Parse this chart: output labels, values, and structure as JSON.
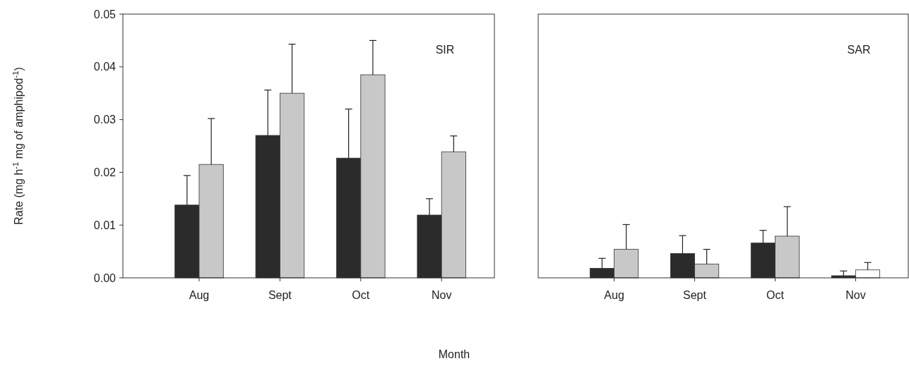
{
  "chart_data": [
    {
      "type": "bar",
      "title": "SIR",
      "ylabel": "Rate (mg h$^{-1}$ mg of amphipod$^{-1}$)",
      "xlabel": "Month",
      "categories": [
        "Aug",
        "Sept",
        "Oct",
        "Nov"
      ],
      "ylim": [
        0,
        0.05
      ],
      "yticks": [
        {
          "value": 0,
          "label": "0.00"
        },
        {
          "value": 0.01,
          "label": "0.01"
        },
        {
          "value": 0.02,
          "label": "0.02"
        },
        {
          "value": 0.03,
          "label": "0.03"
        },
        {
          "value": 0.04,
          "label": "0.04"
        },
        {
          "value": 0.05,
          "label": "0.05"
        }
      ],
      "grid": false,
      "series": [
        {
          "color": "#2b2b2b",
          "values": [
            0.0138,
            0.027,
            0.0227,
            0.0119
          ],
          "errors": [
            0.0056,
            0.0086,
            0.0093,
            0.0031
          ]
        },
        {
          "color": "#c8c8c8",
          "values": [
            0.0215,
            0.035,
            0.0385,
            0.0239
          ],
          "errors": [
            0.0087,
            0.0093,
            0.0065,
            0.003
          ]
        }
      ]
    },
    {
      "type": "bar",
      "title": "SAR",
      "categories": [
        "Aug",
        "Sept",
        "Oct",
        "Nov"
      ],
      "ylim": [
        0,
        0.05
      ],
      "tick_labels": "x",
      "grid": false,
      "series": [
        {
          "color": "#2b2b2b",
          "values": [
            0.0018,
            0.0046,
            0.0066,
            0.0004
          ],
          "errors": [
            0.0019,
            0.0034,
            0.0024,
            0.0009
          ]
        },
        {
          "colors": [
            "#c8c8c8",
            "#c8c8c8",
            "#c8c8c8",
            "#ffffff"
          ],
          "values": [
            0.0054,
            0.0026,
            0.0079,
            0.0015
          ],
          "errors": [
            0.0047,
            0.0028,
            0.0056,
            0.0014
          ]
        }
      ]
    }
  ]
}
